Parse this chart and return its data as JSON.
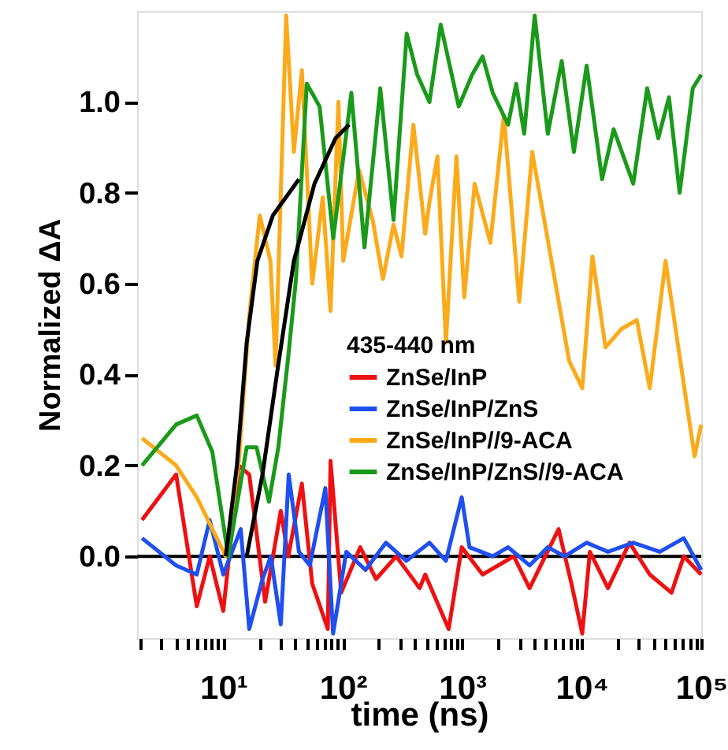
{
  "chart_data": {
    "type": "line",
    "xlabel": "time (ns)",
    "ylabel": "Normalized ΔA",
    "legend_title": "435-440 nm",
    "log": "x",
    "xlim": [
      1.9,
      100000
    ],
    "ylim": [
      -0.18,
      1.2
    ],
    "xticks": [
      {
        "value": 2,
        "label": null
      },
      {
        "value": 3,
        "label": null
      },
      {
        "value": 4,
        "label": null
      },
      {
        "value": 5,
        "label": null
      },
      {
        "value": 6,
        "label": null
      },
      {
        "value": 7,
        "label": null
      },
      {
        "value": 8,
        "label": null
      },
      {
        "value": 9,
        "label": null
      },
      {
        "value": 10,
        "label": "10¹"
      },
      {
        "value": 20,
        "label": null
      },
      {
        "value": 30,
        "label": null
      },
      {
        "value": 40,
        "label": null
      },
      {
        "value": 50,
        "label": null
      },
      {
        "value": 60,
        "label": null
      },
      {
        "value": 70,
        "label": null
      },
      {
        "value": 80,
        "label": null
      },
      {
        "value": 90,
        "label": null
      },
      {
        "value": 100,
        "label": "10²"
      },
      {
        "value": 200,
        "label": null
      },
      {
        "value": 300,
        "label": null
      },
      {
        "value": 400,
        "label": null
      },
      {
        "value": 500,
        "label": null
      },
      {
        "value": 600,
        "label": null
      },
      {
        "value": 700,
        "label": null
      },
      {
        "value": 800,
        "label": null
      },
      {
        "value": 900,
        "label": null
      },
      {
        "value": 1000,
        "label": "10³"
      },
      {
        "value": 2000,
        "label": null
      },
      {
        "value": 3000,
        "label": null
      },
      {
        "value": 4000,
        "label": null
      },
      {
        "value": 5000,
        "label": null
      },
      {
        "value": 6000,
        "label": null
      },
      {
        "value": 7000,
        "label": null
      },
      {
        "value": 8000,
        "label": null
      },
      {
        "value": 9000,
        "label": null
      },
      {
        "value": 10000,
        "label": "10⁴"
      },
      {
        "value": 20000,
        "label": null
      },
      {
        "value": 30000,
        "label": null
      },
      {
        "value": 40000,
        "label": null
      },
      {
        "value": 50000,
        "label": null
      },
      {
        "value": 60000,
        "label": null
      },
      {
        "value": 70000,
        "label": null
      },
      {
        "value": 80000,
        "label": null
      },
      {
        "value": 90000,
        "label": null
      },
      {
        "value": 100000,
        "label": "10⁵"
      }
    ],
    "yticks": [
      {
        "value": 0,
        "label": "0.0"
      },
      0.2,
      0.4,
      0.6,
      0.8,
      {
        "value": 1,
        "label": "1.0"
      }
    ],
    "grid": false,
    "legend": "right",
    "line_style": "solid",
    "marker": "none",
    "ref_lines": [
      {
        "axis": "y",
        "value": 0,
        "color": "#000000"
      }
    ],
    "series": [
      {
        "name": "ZnSe/InP",
        "color": "#ee1111",
        "x": [
          2.09,
          4.03,
          6.0,
          7.7,
          10,
          13.5,
          16.5,
          22.4,
          30.3,
          35,
          45.5,
          55.5,
          75,
          79,
          97,
          140,
          190,
          280,
          440,
          490,
          770,
          990,
          1480,
          2700,
          3660,
          6400,
          8200,
          10100,
          11700,
          16600,
          25100,
          37100,
          56400,
          71500,
          100000
        ],
        "values": [
          0.08,
          0.18,
          -0.11,
          0.0,
          -0.12,
          0.2,
          0.18,
          -0.1,
          0.1,
          0.0,
          0.16,
          -0.06,
          -0.16,
          0.21,
          -0.08,
          0.02,
          -0.05,
          0.0,
          -0.07,
          -0.04,
          -0.16,
          0.02,
          -0.04,
          0.0,
          -0.07,
          0.06,
          -0.06,
          -0.17,
          0.01,
          -0.07,
          0.03,
          -0.04,
          -0.08,
          0.0,
          -0.04
        ]
      },
      {
        "name": "ZnSe/InP/ZnS",
        "color": "#1f4ff0",
        "x": [
          2.09,
          4.03,
          6.0,
          7.7,
          10,
          14,
          16.5,
          21.3,
          25,
          30.3,
          35.3,
          43,
          53,
          71.5,
          83,
          107,
          155,
          230,
          340,
          532,
          730,
          990,
          1150,
          1800,
          2420,
          3660,
          5200,
          7200,
          11000,
          16600,
          27000,
          45000,
          71500,
          100000
        ],
        "values": [
          0.04,
          -0.02,
          -0.04,
          0.08,
          -0.04,
          0.06,
          -0.16,
          -0.05,
          0.0,
          -0.15,
          0.18,
          0.01,
          -0.02,
          0.15,
          -0.17,
          0.01,
          -0.03,
          0.03,
          -0.01,
          0.03,
          -0.01,
          0.13,
          0.02,
          0.0,
          0.02,
          -0.02,
          0.02,
          0.0,
          0.03,
          0.01,
          0.03,
          0.01,
          0.04,
          -0.03
        ]
      },
      {
        "name": "ZnSe/InP//9-ACA",
        "color": "#fbaa1a",
        "x": [
          2.09,
          4.03,
          6.0,
          10.5,
          13.5,
          16.5,
          20.2,
          24.8,
          27.4,
          33.6,
          39,
          45.5,
          55.5,
          68,
          79,
          92,
          101,
          137,
          178,
          217,
          266,
          310,
          390,
          490,
          532,
          620,
          730,
          895,
          1040,
          1270,
          1720,
          2230,
          3000,
          3850,
          5500,
          7850,
          10100,
          12300,
          15800,
          21400,
          28900,
          37100,
          50300,
          66000,
          88000,
          100000
        ],
        "values": [
          0.26,
          0.2,
          0.13,
          0.0,
          0.21,
          0.53,
          0.75,
          0.65,
          0.42,
          1.19,
          0.89,
          1.07,
          0.6,
          0.79,
          0.54,
          1.0,
          0.65,
          0.85,
          0.74,
          0.61,
          0.73,
          0.66,
          0.95,
          0.71,
          0.78,
          0.88,
          0.47,
          0.88,
          0.57,
          0.82,
          0.69,
          0.97,
          0.56,
          0.89,
          0.66,
          0.43,
          0.37,
          0.66,
          0.46,
          0.5,
          0.52,
          0.37,
          0.65,
          0.44,
          0.22,
          0.29
        ]
      },
      {
        "name": "ZnSe/InP/ZnS//9-ACA",
        "color": "#1a9a1a",
        "x": [
          2.09,
          4.03,
          6.0,
          8.1,
          11,
          15.7,
          19,
          24.1,
          28.9,
          35,
          40.6,
          50,
          64,
          83.3,
          118,
          152,
          206,
          266,
          343,
          420,
          532,
          660,
          935,
          1210,
          1480,
          1800,
          2420,
          2830,
          3300,
          4040,
          5200,
          6800,
          8600,
          11000,
          14800,
          18500,
          27000,
          35300,
          43700,
          53700,
          66000,
          85000,
          100000
        ],
        "values": [
          0.2,
          0.29,
          0.31,
          0.23,
          0.0,
          0.24,
          0.24,
          0.12,
          0.24,
          0.44,
          0.61,
          1.04,
          0.99,
          0.7,
          1.02,
          0.68,
          1.03,
          0.74,
          1.15,
          1.06,
          1.0,
          1.17,
          0.99,
          1.06,
          1.1,
          1.02,
          0.95,
          1.04,
          0.93,
          1.19,
          0.93,
          1.09,
          0.89,
          1.08,
          0.83,
          0.94,
          0.82,
          1.03,
          0.92,
          1.01,
          0.8,
          1.03,
          1.06
        ]
      },
      {
        "type": "line",
        "color": "#000000",
        "x": [
          10.5,
          13,
          15.7,
          19.3,
          26,
          43
        ],
        "values": [
          0.0,
          0.2,
          0.47,
          0.65,
          0.75,
          0.83
        ]
      },
      {
        "type": "line",
        "color": "#000000",
        "x": [
          15.7,
          21.3,
          28.8,
          39,
          58,
          87,
          113
        ],
        "values": [
          0.0,
          0.18,
          0.42,
          0.65,
          0.82,
          0.92,
          0.95
        ]
      }
    ]
  }
}
